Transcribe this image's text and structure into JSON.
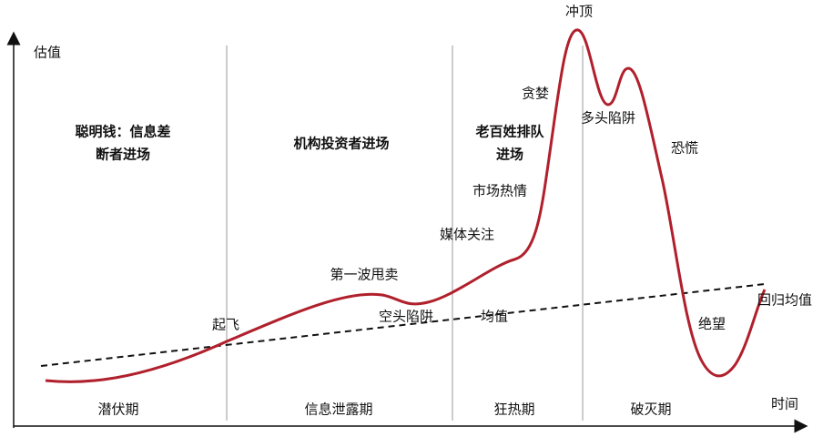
{
  "axes": {
    "y": "估值",
    "x": "时间"
  },
  "headers": [
    {
      "lines": [
        "聪明钱：信息差",
        "断者进场"
      ]
    },
    {
      "lines": [
        "机构投资者进场"
      ]
    },
    {
      "lines": [
        "老百姓排队",
        "进场"
      ]
    }
  ],
  "phases": [
    "潜伏期",
    "信息泄露期",
    "狂热期",
    "破灭期"
  ],
  "annotations": [
    "冲顶",
    "贪婪",
    "多头陷阱",
    "恐慌",
    "市场热情",
    "媒体关注",
    "第一波甩卖",
    "空头陷阱",
    "均值",
    "起飞",
    "绝望",
    "回归均值"
  ]
}
